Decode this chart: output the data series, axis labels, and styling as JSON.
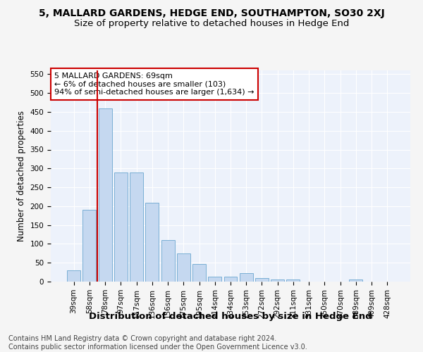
{
  "title": "5, MALLARD GARDENS, HEDGE END, SOUTHAMPTON, SO30 2XJ",
  "subtitle": "Size of property relative to detached houses in Hedge End",
  "xlabel": "Distribution of detached houses by size in Hedge End",
  "ylabel": "Number of detached properties",
  "bar_values": [
    30,
    190,
    460,
    290,
    290,
    210,
    110,
    75,
    47,
    13,
    13,
    22,
    10,
    5,
    5,
    0,
    0,
    0,
    5,
    0,
    0
  ],
  "bar_labels": [
    "39sqm",
    "58sqm",
    "78sqm",
    "97sqm",
    "117sqm",
    "136sqm",
    "156sqm",
    "175sqm",
    "195sqm",
    "214sqm",
    "234sqm",
    "253sqm",
    "272sqm",
    "292sqm",
    "311sqm",
    "331sqm",
    "350sqm",
    "370sqm",
    "389sqm",
    "409sqm",
    "428sqm"
  ],
  "bar_color": "#c5d8f0",
  "bar_edgecolor": "#7aafd4",
  "bar_linewidth": 0.7,
  "red_line_x": 1.5,
  "red_line_color": "#cc0000",
  "annotation_text": "5 MALLARD GARDENS: 69sqm\n← 6% of detached houses are smaller (103)\n94% of semi-detached houses are larger (1,634) →",
  "annotation_box_color": "#ffffff",
  "annotation_box_edgecolor": "#cc0000",
  "ylim": [
    0,
    560
  ],
  "yticks": [
    0,
    50,
    100,
    150,
    200,
    250,
    300,
    350,
    400,
    450,
    500,
    550
  ],
  "footnote": "Contains HM Land Registry data © Crown copyright and database right 2024.\nContains public sector information licensed under the Open Government Licence v3.0.",
  "bg_color": "#edf2fb",
  "grid_color": "#ffffff",
  "title_fontsize": 10,
  "subtitle_fontsize": 9.5,
  "xlabel_fontsize": 9.5,
  "ylabel_fontsize": 8.5,
  "tick_fontsize": 7.5,
  "annotation_fontsize": 8,
  "footnote_fontsize": 7
}
